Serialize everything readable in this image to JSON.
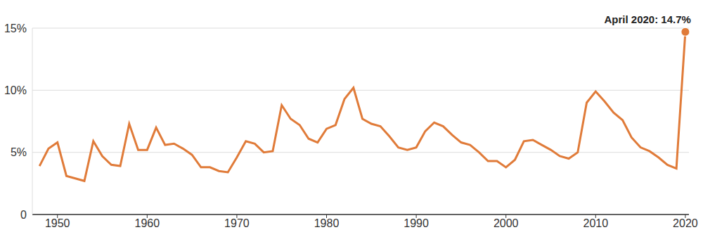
{
  "chart_data": {
    "type": "line",
    "x": [
      1948,
      1949,
      1950,
      1951,
      1952,
      1953,
      1954,
      1955,
      1956,
      1957,
      1958,
      1959,
      1960,
      1961,
      1962,
      1963,
      1964,
      1965,
      1966,
      1967,
      1968,
      1969,
      1970,
      1971,
      1972,
      1973,
      1974,
      1975,
      1976,
      1977,
      1978,
      1979,
      1980,
      1981,
      1982,
      1983,
      1984,
      1985,
      1986,
      1987,
      1988,
      1989,
      1990,
      1991,
      1992,
      1993,
      1994,
      1995,
      1996,
      1997,
      1998,
      1999,
      2000,
      2001,
      2002,
      2003,
      2004,
      2005,
      2006,
      2007,
      2008,
      2009,
      2010,
      2011,
      2012,
      2013,
      2014,
      2015,
      2016,
      2017,
      2018,
      2019,
      2020
    ],
    "values": [
      3.9,
      5.3,
      5.8,
      3.1,
      2.9,
      2.7,
      5.9,
      4.7,
      4.0,
      3.9,
      7.3,
      5.2,
      5.2,
      7.0,
      5.6,
      5.7,
      5.3,
      4.8,
      3.8,
      3.8,
      3.5,
      3.4,
      4.6,
      5.9,
      5.7,
      5.0,
      5.1,
      8.8,
      7.7,
      7.2,
      6.1,
      5.8,
      6.9,
      7.2,
      9.3,
      10.2,
      7.7,
      7.3,
      7.1,
      6.3,
      5.4,
      5.2,
      5.4,
      6.7,
      7.4,
      7.1,
      6.4,
      5.8,
      5.6,
      5.0,
      4.3,
      4.3,
      3.8,
      4.4,
      5.9,
      6.0,
      5.6,
      5.2,
      4.7,
      4.5,
      5.0,
      9.0,
      9.9,
      9.1,
      8.2,
      7.6,
      6.2,
      5.4,
      5.1,
      4.6,
      4.0,
      3.7,
      14.7
    ],
    "color": "#e07b39",
    "xlim": [
      1947.2,
      2020.4
    ],
    "xticks": [
      1950,
      1960,
      1970,
      1980,
      1990,
      2000,
      2010,
      2020
    ],
    "ylim": [
      0,
      15
    ],
    "yticks": [
      0,
      {
        "value": 5,
        "label": "5%"
      },
      {
        "value": 10,
        "label": "10%"
      },
      {
        "value": 15,
        "label": "15%"
      }
    ],
    "grid": true,
    "annotations": [
      {
        "text": "April 2020: 14.7%",
        "x": 2020,
        "y": 14.7
      }
    ]
  }
}
